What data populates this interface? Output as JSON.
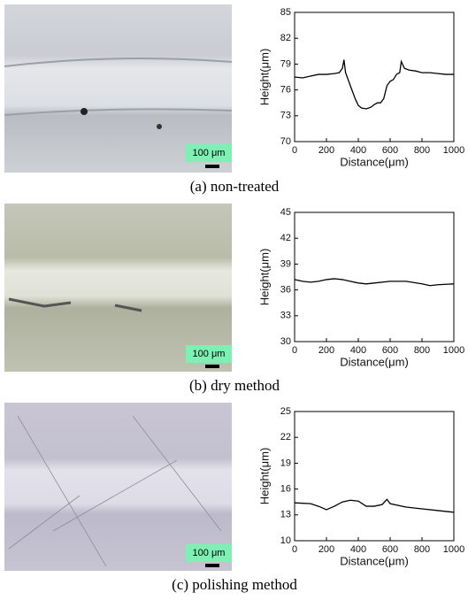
{
  "captions": [
    "(a) non-treated",
    "(b) dry method",
    "(c) polishing method"
  ],
  "scale_bar_labels": [
    "100 μm",
    "100 μm",
    "100 μm"
  ],
  "chart_data": [
    {
      "type": "line",
      "x_label": "Distance(μm)",
      "y_label": "Height(μm)",
      "x": [
        0,
        50,
        100,
        150,
        200,
        250,
        280,
        300,
        310,
        320,
        340,
        360,
        380,
        400,
        420,
        450,
        480,
        500,
        520,
        540,
        560,
        580,
        600,
        620,
        640,
        660,
        670,
        690,
        720,
        760,
        800,
        850,
        900,
        950,
        1000
      ],
      "values": [
        77.5,
        77.4,
        77.6,
        77.8,
        77.8,
        77.9,
        78,
        78.5,
        79.5,
        78,
        77,
        76,
        75,
        74.2,
        73.9,
        73.8,
        74,
        74.3,
        74.5,
        74.5,
        75,
        76.5,
        77,
        77.2,
        77.8,
        78,
        79.3,
        78.5,
        78.3,
        78.2,
        78,
        78,
        77.9,
        77.8,
        77.8
      ],
      "color": "#000000",
      "xlim": [
        0,
        1000
      ],
      "ylim": [
        70,
        85
      ],
      "xticks": [
        0,
        200,
        400,
        600,
        800,
        1000
      ],
      "yticks": [
        70,
        73,
        76,
        79,
        82,
        85
      ]
    },
    {
      "type": "line",
      "x_label": "Distance(μm)",
      "y_label": "Height(μm)",
      "x": [
        0,
        50,
        100,
        150,
        200,
        250,
        300,
        350,
        400,
        450,
        500,
        600,
        700,
        800,
        850,
        900,
        1000
      ],
      "values": [
        37.2,
        37.0,
        36.9,
        37.0,
        37.2,
        37.3,
        37.2,
        37.0,
        36.8,
        36.7,
        36.8,
        37.0,
        37.0,
        36.7,
        36.5,
        36.6,
        36.7
      ],
      "color": "#000000",
      "xlim": [
        0,
        1000
      ],
      "ylim": [
        30,
        45
      ],
      "xticks": [
        0,
        200,
        400,
        600,
        800,
        1000
      ],
      "yticks": [
        30,
        33,
        36,
        39,
        42,
        45
      ]
    },
    {
      "type": "line",
      "x_label": "Distance(μm)",
      "y_label": "Height(μm)",
      "x": [
        0,
        100,
        150,
        200,
        250,
        300,
        350,
        400,
        450,
        500,
        550,
        580,
        600,
        700,
        800,
        900,
        1000
      ],
      "values": [
        14.4,
        14.3,
        14.0,
        13.6,
        14.0,
        14.5,
        14.7,
        14.6,
        14.0,
        14.0,
        14.2,
        14.8,
        14.3,
        13.9,
        13.7,
        13.5,
        13.3
      ],
      "color": "#000000",
      "xlim": [
        0,
        1000
      ],
      "ylim": [
        10,
        25
      ],
      "xticks": [
        0,
        200,
        400,
        600,
        800,
        1000
      ],
      "yticks": [
        10,
        13,
        16,
        19,
        22,
        25
      ]
    }
  ]
}
